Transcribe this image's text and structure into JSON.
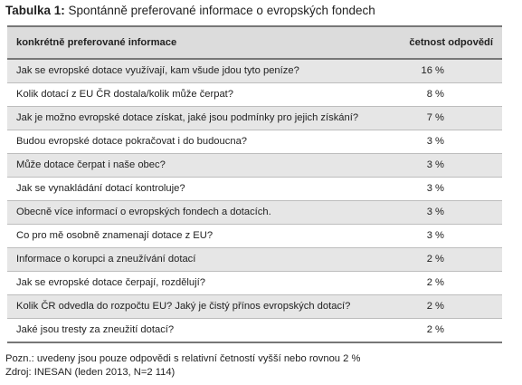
{
  "caption": {
    "label": "Tabulka 1:",
    "title": "Spontánně preferované informace o evropských fondech"
  },
  "table": {
    "headers": [
      "konkrétně preferované informace",
      "četnost odpovědí"
    ],
    "rows": [
      [
        "Jak se evropské dotace využívají, kam všude jdou tyto peníze?",
        "16 %"
      ],
      [
        "Kolik dotací z EU ČR dostala/kolik může čerpat?",
        "8 %"
      ],
      [
        "Jak je možno evropské dotace získat, jaké jsou podmínky pro jejich získání?",
        "7 %"
      ],
      [
        "Budou evropské dotace pokračovat i do budoucna?",
        "3 %"
      ],
      [
        "Může dotace čerpat i naše obec?",
        "3 %"
      ],
      [
        "Jak se vynakládání dotací kontroluje?",
        "3 %"
      ],
      [
        "Obecně více informací o evropských fondech a dotacích.",
        "3 %"
      ],
      [
        "Co pro mě osobně znamenají dotace z EU?",
        "3 %"
      ],
      [
        "Informace o korupci a zneužívání dotací",
        "2 %"
      ],
      [
        "Jak se evropské dotace čerpají, rozdělují?",
        "2 %"
      ],
      [
        "Kolik ČR odvedla do rozpočtu EU? Jaký je čistý přínos evropských dotací?",
        "2 %"
      ],
      [
        "Jaké jsou tresty za zneužití dotací?",
        "2 %"
      ]
    ]
  },
  "notes": {
    "note": "Pozn.: uvedeny jsou pouze odpovědi s relativní četností vyšší nebo rovnou 2 %",
    "source": "Zdroj: INESAN (leden 2013, N=2 114)"
  }
}
